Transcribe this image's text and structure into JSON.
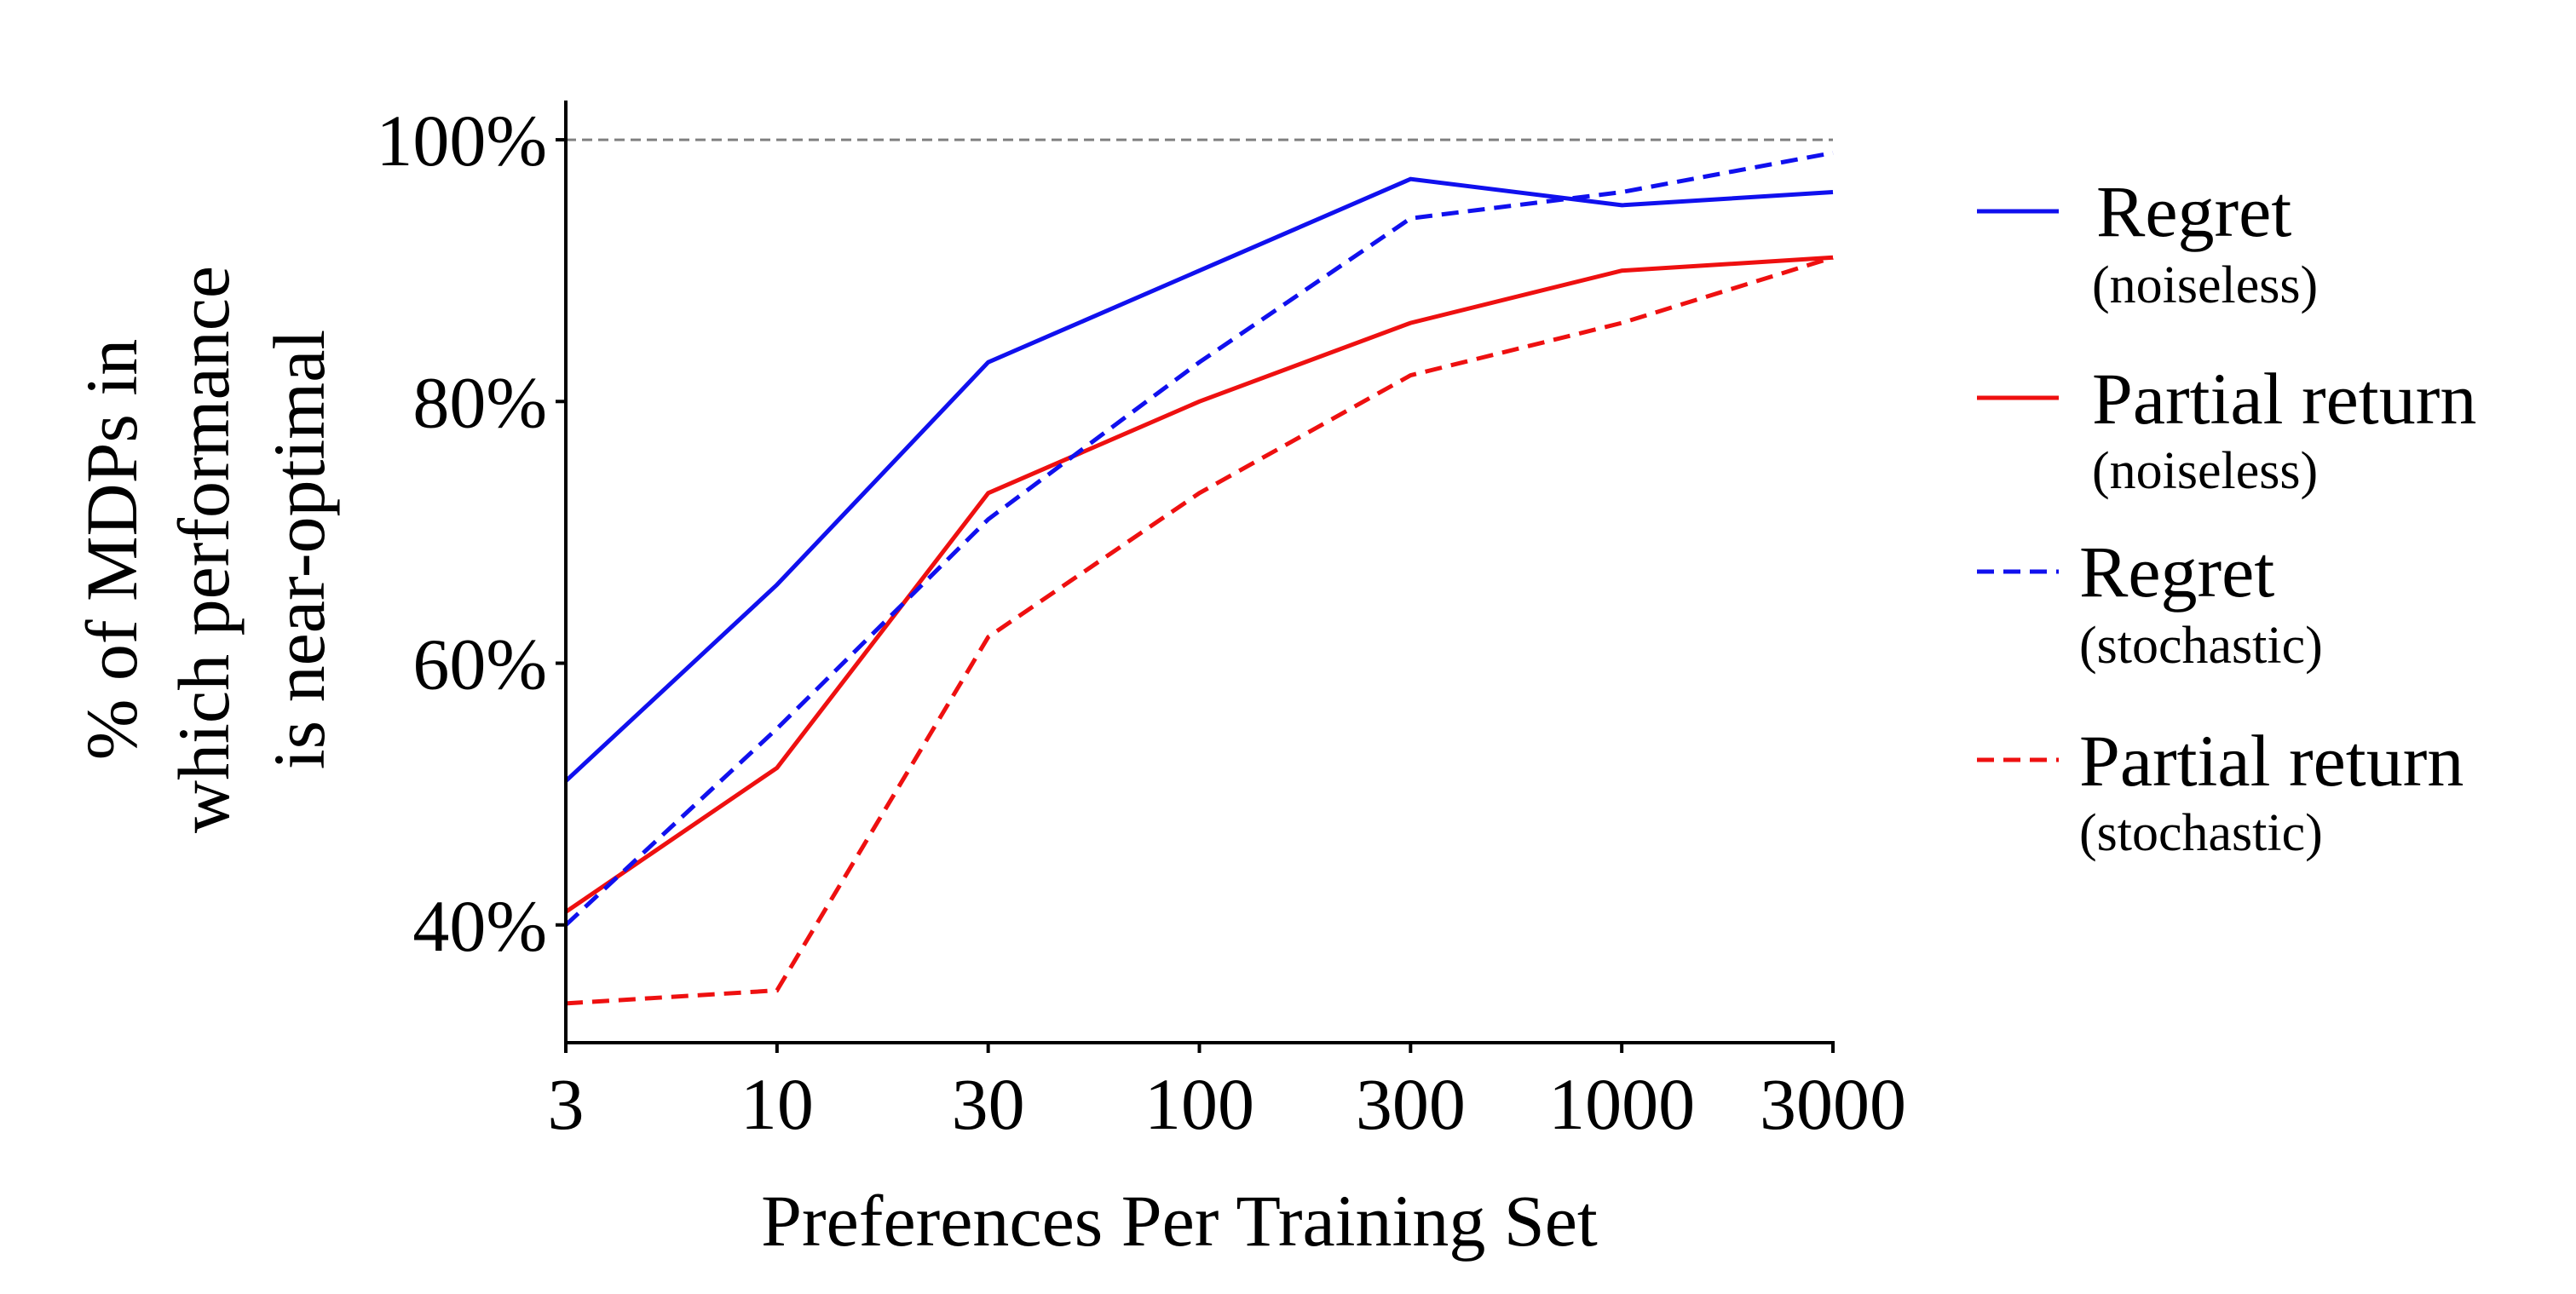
{
  "chart_data": {
    "type": "line",
    "title": "",
    "xlabel": "Preferences Per Training Set",
    "ylabel_lines": [
      "% of MDPs in",
      "which performance",
      "is near-optimal"
    ],
    "x": [
      3,
      10,
      30,
      100,
      300,
      1000,
      3000
    ],
    "x_tick_labels": [
      "3",
      "10",
      "30",
      "100",
      "300",
      "1000",
      "3000"
    ],
    "x_scale": "categorical",
    "y_ticks": [
      40,
      60,
      80,
      100
    ],
    "y_tick_labels": [
      "40%",
      "60%",
      "80%",
      "100%"
    ],
    "ylim": [
      31,
      103
    ],
    "reference_line": {
      "y": 100,
      "style": "dashed",
      "color": "#808080"
    },
    "grid": false,
    "legend_position": "right",
    "series": [
      {
        "name": "Regret",
        "condition": "(noiseless)",
        "color": "#1010ee",
        "dash": "solid",
        "values": [
          51,
          66,
          83,
          90,
          97,
          95,
          96
        ]
      },
      {
        "name": "Partial return",
        "condition": "(noiseless)",
        "color": "#ee1010",
        "dash": "solid",
        "values": [
          41,
          52,
          73,
          80,
          86,
          90,
          91
        ]
      },
      {
        "name": "Regret",
        "condition": "(stochastic)",
        "color": "#1010ee",
        "dash": "dashed",
        "values": [
          40,
          55,
          71,
          83,
          94,
          96,
          99
        ]
      },
      {
        "name": "Partial return",
        "condition": "(stochastic)",
        "color": "#ee1010",
        "dash": "dashed",
        "values": [
          34,
          35,
          62,
          73,
          82,
          86,
          91
        ]
      }
    ]
  }
}
